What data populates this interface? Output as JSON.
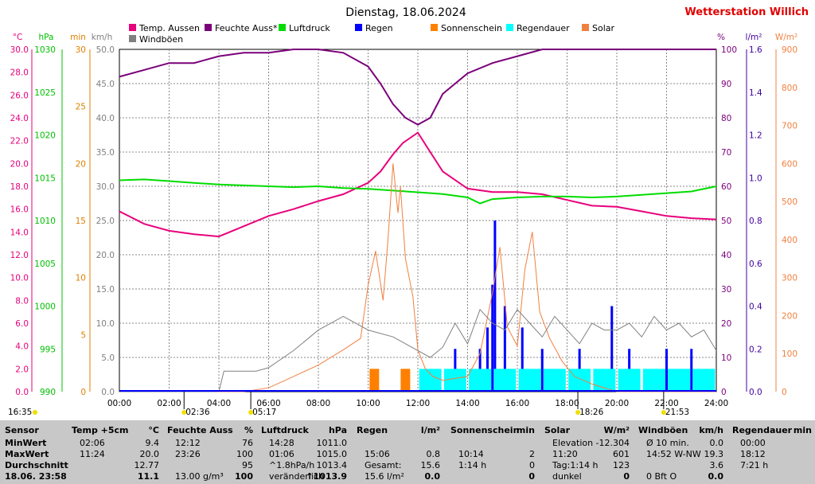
{
  "header": {
    "title": "Dienstag, 18.06.2024",
    "station": "Wetterstation Willich"
  },
  "legend": [
    {
      "label": "Temp. Aussen",
      "color": "#e8007c"
    },
    {
      "label": "Feuchte Auss*",
      "color": "#7a007a"
    },
    {
      "label": "Luftdruck",
      "color": "#00dc00"
    },
    {
      "label": "Regen",
      "color": "#0000ff"
    },
    {
      "label": "Sonnenschein",
      "color": "#ff8000"
    },
    {
      "label": "Regendauer",
      "color": "#00ffff"
    },
    {
      "label": "Solar",
      "color": "#f08040"
    },
    {
      "label": "Windböen",
      "color": "#808080"
    }
  ],
  "axes": {
    "temp": {
      "unit": "°C",
      "color": "#e8007c",
      "ticks": [
        "30.0",
        "28.0",
        "26.0",
        "24.0",
        "22.0",
        "20.0",
        "18.0",
        "16.0",
        "14.0",
        "12.0",
        "10.0",
        "8.0",
        "6.0",
        "4.0",
        "2.0",
        "0.0"
      ]
    },
    "hpa": {
      "unit": "hPa",
      "color": "#00c000",
      "ticks": [
        "1030",
        "1025",
        "1020",
        "1015",
        "1010",
        "1005",
        "1000",
        "995",
        "990"
      ]
    },
    "min": {
      "unit": "min",
      "color": "#e08000",
      "ticks": [
        "30",
        "25",
        "20",
        "15",
        "10",
        "5",
        "0"
      ]
    },
    "kmh": {
      "unit": "km/h",
      "color": "#808080",
      "ticks": [
        "50.0",
        "45.0",
        "40.0",
        "35.0",
        "30.0",
        "25.0",
        "20.0",
        "15.0",
        "10.0",
        "5.0",
        "0.0"
      ]
    },
    "pct": {
      "unit": "%",
      "color": "#7a007a",
      "ticks": [
        "100",
        "90",
        "80",
        "70",
        "60",
        "50",
        "40",
        "30",
        "20",
        "10",
        "0"
      ]
    },
    "lm2": {
      "unit": "l/m²",
      "color": "#4000a0",
      "ticks": [
        "1.6",
        "1.4",
        "1.2",
        "1.0",
        "0.8",
        "0.6",
        "0.4",
        "0.2",
        "0.0"
      ]
    },
    "wm2": {
      "unit": "W/m²",
      "color": "#f08040",
      "ticks": [
        "900",
        "800",
        "700",
        "600",
        "500",
        "400",
        "300",
        "200",
        "100",
        "0"
      ]
    }
  },
  "x_ticks": [
    "00:00",
    "02:00",
    "04:00",
    "06:00",
    "08:00",
    "10:00",
    "12:00",
    "14:00",
    "16:00",
    "18:00",
    "20:00",
    "22:00",
    "24:00"
  ],
  "markers": {
    "sunrise": "05:17",
    "sunset": "21:53",
    "moon1": "02:36",
    "moon2": "18:26",
    "now": "16:35"
  },
  "chart_data": {
    "type": "line",
    "x_unit": "hours",
    "series": [
      {
        "name": "Temp. Aussen",
        "unit": "°C",
        "x": [
          0,
          1,
          2,
          3,
          4,
          5,
          6,
          7,
          8,
          9,
          10,
          10.5,
          11,
          11.4,
          12,
          12.5,
          13,
          14,
          15,
          16,
          17,
          18,
          19,
          20,
          21,
          22,
          23,
          24
        ],
        "values": [
          15.8,
          14.7,
          14.1,
          13.8,
          13.6,
          14.5,
          15.4,
          16.0,
          16.7,
          17.3,
          18.3,
          19.3,
          20.8,
          21.8,
          22.7,
          21.0,
          19.3,
          17.8,
          17.5,
          17.5,
          17.3,
          16.8,
          16.3,
          16.2,
          15.8,
          15.4,
          15.2,
          15.1
        ]
      },
      {
        "name": "Feuchte Auss*",
        "unit": "%",
        "x": [
          0,
          1,
          2,
          3,
          4,
          5,
          6,
          7,
          8,
          9,
          10,
          10.5,
          11,
          11.5,
          12,
          12.5,
          13,
          14,
          15,
          16,
          17,
          18,
          19,
          20,
          21,
          22,
          23,
          23.5,
          24
        ],
        "values": [
          92,
          94,
          96,
          96,
          98,
          99,
          99,
          100,
          100,
          99,
          95,
          90,
          84,
          80,
          78,
          80,
          87,
          93,
          96,
          98,
          100,
          100,
          100,
          100,
          100,
          100,
          100,
          100,
          100
        ]
      },
      {
        "name": "Luftdruck",
        "unit": "hPa",
        "x": [
          0,
          1,
          2,
          3,
          4,
          5,
          6,
          7,
          8,
          9,
          10,
          11,
          12,
          13,
          14,
          14.5,
          15,
          16,
          17,
          18,
          19,
          20,
          21,
          22,
          23,
          24
        ],
        "values": [
          1014.7,
          1014.8,
          1014.6,
          1014.4,
          1014.2,
          1014.1,
          1014.0,
          1013.9,
          1014.0,
          1013.8,
          1013.7,
          1013.5,
          1013.3,
          1013.1,
          1012.7,
          1012.0,
          1012.5,
          1012.7,
          1012.8,
          1012.8,
          1012.7,
          1012.8,
          1013.0,
          1013.2,
          1013.4,
          1014.0
        ]
      },
      {
        "name": "Solar",
        "unit": "W/m²",
        "x": [
          0,
          5,
          6,
          7,
          8,
          9,
          9.7,
          10,
          10.3,
          10.6,
          10.8,
          11,
          11.2,
          11.3,
          11.5,
          11.8,
          12,
          12.3,
          12.6,
          13,
          14,
          14.5,
          15,
          15.3,
          15.6,
          16,
          16.3,
          16.6,
          16.9,
          17.3,
          17.8,
          18.3,
          19,
          20,
          24
        ],
        "values": [
          0,
          0,
          10,
          40,
          70,
          110,
          140,
          280,
          370,
          240,
          400,
          600,
          470,
          540,
          350,
          250,
          110,
          60,
          40,
          30,
          40,
          100,
          260,
          380,
          170,
          120,
          320,
          420,
          210,
          140,
          80,
          40,
          20,
          0,
          0
        ]
      },
      {
        "name": "Windböen",
        "unit": "km/h",
        "x": [
          0,
          4,
          4.2,
          5.5,
          6,
          7,
          8,
          9,
          10,
          11,
          12,
          12.5,
          13,
          13.5,
          14,
          14.5,
          15,
          15.5,
          16,
          16.5,
          17,
          17.5,
          18,
          18.5,
          19,
          19.5,
          20,
          20.5,
          21,
          21.5,
          22,
          22.5,
          23,
          23.5,
          24
        ],
        "values": [
          0,
          0,
          3,
          3,
          3.5,
          6,
          9,
          11,
          9,
          8,
          6,
          5,
          6.5,
          10,
          7,
          12,
          10,
          9,
          12,
          10,
          8,
          11,
          9,
          7,
          10,
          9,
          9,
          10,
          8,
          11,
          9,
          10,
          8,
          9,
          6
        ]
      },
      {
        "name": "Regen",
        "unit": "l/m²",
        "x": [
          13.5,
          14.5,
          14.8,
          15,
          15.1,
          15.5,
          16.2,
          17,
          18.5,
          19.8,
          20.5,
          22,
          23
        ],
        "values": [
          0.2,
          0.2,
          0.3,
          0.5,
          0.8,
          0.4,
          0.3,
          0.2,
          0.2,
          0.4,
          0.2,
          0.2,
          0.2
        ]
      },
      {
        "name": "Regendauer",
        "unit": "min",
        "x": [
          12.5,
          13.5,
          14.5,
          15.5,
          16.5,
          17.5,
          18.5,
          19.5,
          20.5,
          21.5,
          22.5,
          23.5
        ],
        "values": [
          2,
          2,
          2,
          2,
          2,
          2,
          2,
          2,
          2,
          2,
          2,
          2
        ]
      },
      {
        "name": "Sonnenschein",
        "unit": "min",
        "x": [
          10.25,
          11.5
        ],
        "values": [
          2,
          2
        ]
      }
    ],
    "xlim": [
      0,
      24
    ]
  },
  "stats": {
    "sensor": {
      "header": "Sensor",
      "rows": [
        "MinWert",
        "MaxWert",
        "Durchschnitt",
        "18.06. 23:58"
      ]
    },
    "temp": {
      "header": "Temp +5cm",
      "unit": "°C",
      "rows": [
        [
          "02:06",
          "9.4"
        ],
        [
          "11:24",
          "20.0"
        ],
        [
          "",
          "12.77"
        ],
        [
          "",
          "11.1"
        ]
      ]
    },
    "feuchte": {
      "header": "Feuchte Auss",
      "unit": "%",
      "rows": [
        [
          "12:12",
          "76"
        ],
        [
          "23:26",
          "100"
        ],
        [
          "",
          "95"
        ],
        [
          "13.00 g/m³",
          "100"
        ]
      ]
    },
    "luftdruck": {
      "header": "Luftdruck",
      "unit": "hPa",
      "rows": [
        [
          "14:28",
          "1011.0"
        ],
        [
          "01:06",
          "1015.0"
        ],
        [
          "^1.8hPa/h",
          "1013.4"
        ],
        [
          "veränderlich",
          "↑1013.9"
        ]
      ]
    },
    "regen": {
      "header": "Regen",
      "unit": "l/m²",
      "rows": [
        [
          "",
          ""
        ],
        [
          "15:06",
          "0.8"
        ],
        [
          "Gesamt:",
          "15.6"
        ],
        [
          "15.6 l/m²",
          "0.0"
        ]
      ]
    },
    "sonne": {
      "header": "Sonnenschein",
      "unit": "min",
      "rows": [
        [
          "",
          ""
        ],
        [
          "10:14",
          "2"
        ],
        [
          "1:14 h",
          "0"
        ],
        [
          "",
          "0"
        ]
      ]
    },
    "solar": {
      "header": "Solar",
      "unit": "W/m²",
      "rows": [
        [
          "Elevation",
          "-12.304"
        ],
        [
          "11:20",
          "601"
        ],
        [
          "Tag:1:14 h",
          "123"
        ],
        [
          "dunkel",
          "0"
        ]
      ]
    },
    "wind": {
      "header": "Windböen",
      "unit": "km/h",
      "rows": [
        [
          "Ø 10 min.",
          "0.0"
        ],
        [
          "14:52  W-NW",
          "19.3"
        ],
        [
          "",
          "3.6"
        ],
        [
          "0 Bft O",
          "0.0"
        ]
      ]
    },
    "regendauer": {
      "header": "Regendauer",
      "unit": "min",
      "rows": [
        [
          "00:00",
          ""
        ],
        [
          "18:12",
          ""
        ],
        [
          "7:21 h",
          ""
        ],
        [
          "",
          ""
        ]
      ]
    }
  }
}
